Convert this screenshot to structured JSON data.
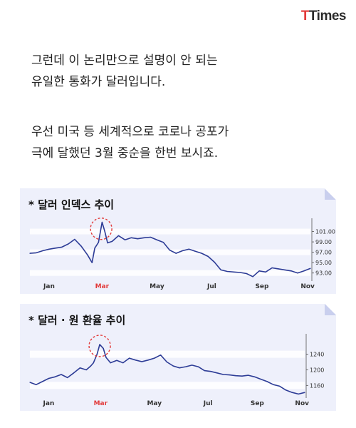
{
  "brand": {
    "logo_t": "T",
    "logo_rest": "Times"
  },
  "paragraphs": [
    {
      "lines": [
        "그런데 이 논리만으로 설명이 안 되는",
        "유일한 통화가 달러입니다."
      ]
    },
    {
      "lines": [
        "우선 미국 등 세계적으로 코로나 공포가",
        "극에 달했던 3월 중순을 한번 보시죠."
      ]
    }
  ],
  "colors": {
    "line": "#2d3c96",
    "card_bg": "#eef0fb",
    "highlight": "#e23a3a"
  },
  "chart_data": [
    {
      "type": "line",
      "title": "* 달러 인덱스 추이",
      "x_tick_labels": [
        "Jan",
        "Mar",
        "May",
        "Jul",
        "Sep",
        "Nov"
      ],
      "highlight_tick": "Mar",
      "y_tick_labels": [
        "101.00",
        "99.00",
        "97.00",
        "95.00",
        "93.00"
      ],
      "ylim": [
        92,
        103
      ],
      "x": [
        "Jan 1",
        "Jan 8",
        "Jan 15",
        "Jan 22",
        "Jan 29",
        "Feb 5",
        "Feb 12",
        "Feb 19",
        "Feb 26",
        "Mar 4",
        "Mar 9",
        "Mar 12",
        "Mar 16",
        "Mar 19",
        "Mar 20",
        "Mar 23",
        "Mar 26",
        "Mar 31",
        "Apr 7",
        "Apr 14",
        "Apr 21",
        "Apr 28",
        "May 5",
        "May 12",
        "May 19",
        "May 26",
        "Jun 2",
        "Jun 9",
        "Jun 16",
        "Jun 23",
        "Jun 30",
        "Jul 7",
        "Jul 14",
        "Jul 21",
        "Jul 28",
        "Aug 4",
        "Aug 11",
        "Aug 18",
        "Aug 25",
        "Sep 1",
        "Sep 8",
        "Sep 15",
        "Sep 22",
        "Sep 29",
        "Oct 6",
        "Oct 13",
        "Oct 20",
        "Oct 27",
        "Nov 3"
      ],
      "values": [
        96.8,
        96.9,
        97.3,
        97.6,
        97.8,
        98.0,
        98.6,
        99.5,
        98.2,
        96.5,
        95.0,
        97.8,
        98.9,
        101.8,
        102.8,
        101.0,
        98.8,
        99.1,
        100.2,
        99.4,
        99.8,
        99.6,
        99.8,
        99.9,
        99.4,
        98.9,
        97.4,
        96.8,
        97.3,
        97.6,
        97.2,
        96.8,
        96.2,
        95.1,
        93.6,
        93.3,
        93.2,
        93.1,
        92.9,
        92.3,
        93.4,
        93.2,
        94.0,
        93.8,
        93.6,
        93.4,
        93.0,
        93.4,
        93.9
      ],
      "annotation": {
        "x": "Mar 19",
        "shape": "dashed-circle"
      }
    },
    {
      "type": "line",
      "title": "* 달러 · 원 환율 추이",
      "x_tick_labels": [
        "Jan",
        "Mar",
        "May",
        "Jul",
        "Sep",
        "Nov"
      ],
      "highlight_tick": "Mar",
      "y_tick_labels": [
        "1240",
        "1200",
        "1160"
      ],
      "ylim": [
        1135,
        1285
      ],
      "x": [
        "Jan 1",
        "Jan 8",
        "Jan 15",
        "Jan 22",
        "Jan 29",
        "Feb 5",
        "Feb 12",
        "Feb 19",
        "Feb 26",
        "Mar 4",
        "Mar 9",
        "Mar 12",
        "Mar 16",
        "Mar 19",
        "Mar 23",
        "Mar 26",
        "Mar 31",
        "Apr 7",
        "Apr 14",
        "Apr 21",
        "Apr 28",
        "May 5",
        "May 12",
        "May 19",
        "May 26",
        "Jun 2",
        "Jun 9",
        "Jun 16",
        "Jun 23",
        "Jun 30",
        "Jul 7",
        "Jul 14",
        "Jul 21",
        "Jul 28",
        "Aug 4",
        "Aug 11",
        "Aug 18",
        "Aug 25",
        "Sep 1",
        "Sep 8",
        "Sep 15",
        "Sep 22",
        "Sep 29",
        "Oct 6",
        "Oct 13",
        "Oct 20",
        "Oct 27",
        "Nov 3"
      ],
      "values": [
        1168,
        1162,
        1170,
        1178,
        1182,
        1188,
        1180,
        1192,
        1205,
        1200,
        1210,
        1218,
        1240,
        1265,
        1255,
        1232,
        1218,
        1224,
        1218,
        1230,
        1225,
        1221,
        1225,
        1230,
        1238,
        1220,
        1210,
        1205,
        1208,
        1212,
        1208,
        1198,
        1196,
        1192,
        1188,
        1187,
        1185,
        1184,
        1186,
        1182,
        1176,
        1170,
        1162,
        1158,
        1148,
        1142,
        1138,
        1142
      ],
      "annotation": {
        "x": "Mar 19",
        "shape": "dashed-circle"
      }
    }
  ]
}
